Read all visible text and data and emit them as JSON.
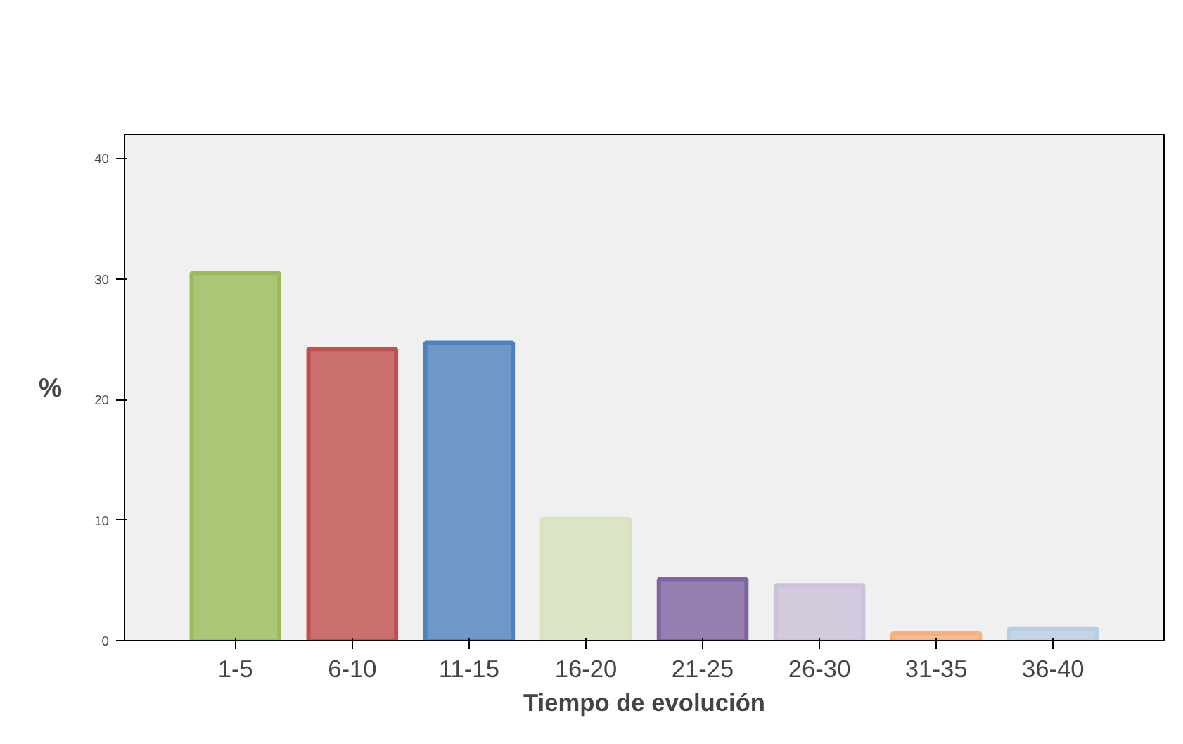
{
  "chart_data": {
    "type": "bar",
    "xlabel": "Tiempo de evolución",
    "ylabel": "%",
    "categories": [
      "1-5",
      "6-10",
      "11-15",
      "16-20",
      "21-25",
      "26-30",
      "31-35",
      "36-40"
    ],
    "values": [
      30.5,
      24.2,
      24.7,
      10.1,
      5.1,
      4.6,
      0.6,
      1.0
    ],
    "colors": [
      "#9bbb59",
      "#c0504d",
      "#4f81bd",
      "#d7e4bd",
      "#8064a2",
      "#ccc1da",
      "#f9b07a",
      "#b9cde5"
    ],
    "ylim": [
      0,
      42
    ],
    "yticks": [
      0,
      10,
      20,
      30,
      40
    ],
    "grid": false
  }
}
